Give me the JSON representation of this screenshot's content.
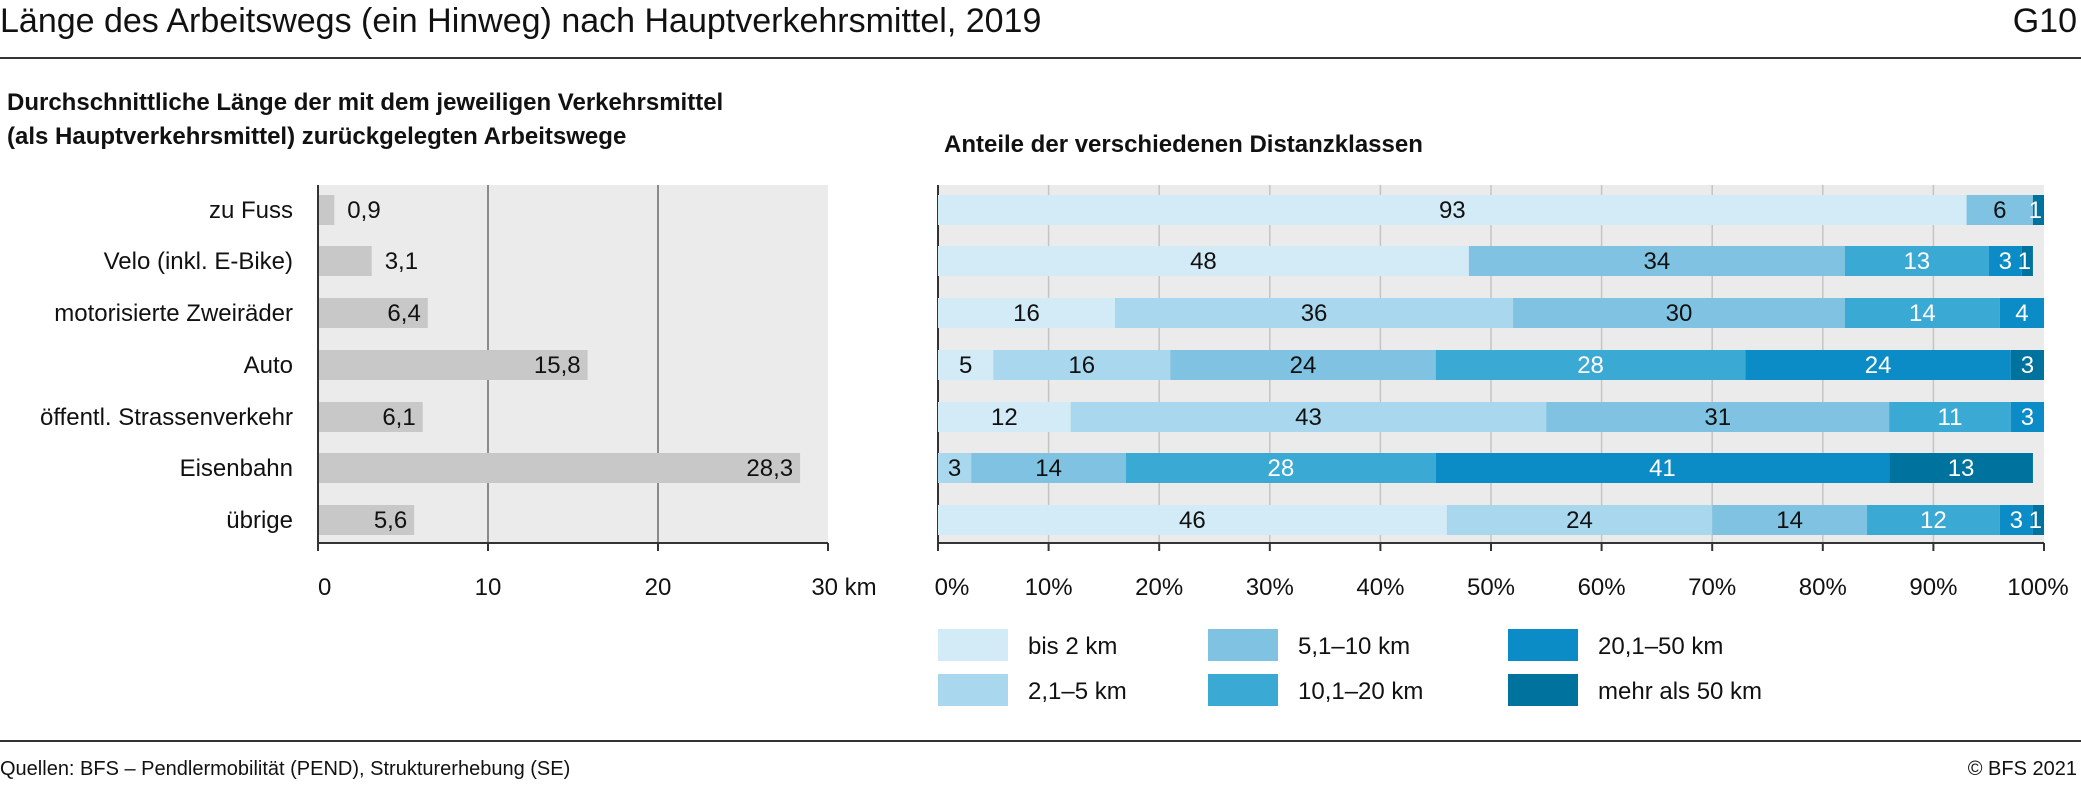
{
  "title": "Länge des Arbeitswegs (ein Hinweg) nach Hauptverkehrsmittel, 2019",
  "chart_id": "G10",
  "footer": {
    "source": "Quellen: BFS – Pendlermobilität (PEND), Strukturerhebung (SE)",
    "copyright": "© BFS 2021"
  },
  "chart_data": [
    {
      "type": "bar",
      "orientation": "horizontal",
      "subtitle_lines": [
        "Durchschnittliche Länge der mit dem jeweiligen Verkehrsmittel",
        "(als Hauptverkehrsmittel) zurückgelegten Arbeitswege"
      ],
      "categories": [
        "zu Fuss",
        "Velo (inkl. E-Bike)",
        "motorisierte Zweiräder",
        "Auto",
        "öffentl. Strassenverkehr",
        "Eisenbahn",
        "übrige"
      ],
      "values": [
        0.9,
        3.1,
        6.4,
        15.8,
        6.1,
        28.3,
        5.6
      ],
      "value_labels": [
        "0,9",
        "3,1",
        "6,4",
        "15,8",
        "6,1",
        "28,3",
        "5,6"
      ],
      "xlim": [
        0,
        30
      ],
      "ticks": [
        0,
        10,
        20,
        30
      ],
      "tick_labels": [
        "0",
        "10",
        "20",
        "30 km"
      ],
      "grid": true,
      "colors": {
        "bar": "#c8c8c8",
        "plot_bg": "#ebebeb"
      }
    },
    {
      "type": "bar",
      "orientation": "horizontal",
      "stacked": true,
      "subtitle": "Anteile der verschiedenen Distanzklassen",
      "categories": [
        "zu Fuss",
        "Velo (inkl. E-Bike)",
        "motorisierte Zweiräder",
        "Auto",
        "öffentl. Strassenverkehr",
        "Eisenbahn",
        "übrige"
      ],
      "series": [
        {
          "name": "bis 2 km",
          "color": "#d3eaf7",
          "values": [
            93,
            48,
            16,
            5,
            12,
            0,
            46
          ]
        },
        {
          "name": "2,1–5 km",
          "color": "#a9d8ee",
          "values": [
            0,
            0,
            36,
            16,
            43,
            3,
            24
          ]
        },
        {
          "name": "5,1–10 km",
          "color": "#7fc2e1",
          "values": [
            6,
            34,
            30,
            24,
            31,
            14,
            14
          ]
        },
        {
          "name": "10,1–20 km",
          "color": "#3aa9d3",
          "values": [
            0,
            13,
            14,
            28,
            11,
            28,
            12
          ]
        },
        {
          "name": "20,1–50 km",
          "color": "#0b8cc6",
          "values": [
            0,
            3,
            4,
            24,
            3,
            41,
            3
          ]
        },
        {
          "name": "mehr als 50 km",
          "color": "#00729e",
          "values": [
            1,
            1,
            0,
            3,
            0,
            13,
            1
          ]
        }
      ],
      "xlim": [
        0,
        100
      ],
      "ticks": [
        0,
        10,
        20,
        30,
        40,
        50,
        60,
        70,
        80,
        90,
        100
      ],
      "tick_labels": [
        "0%",
        "10%",
        "20%",
        "30%",
        "40%",
        "50%",
        "60%",
        "70%",
        "80%",
        "90%",
        "100%"
      ],
      "legend_position": "bottom",
      "grid": true,
      "colors": {
        "plot_bg": "#ebebeb"
      }
    }
  ]
}
